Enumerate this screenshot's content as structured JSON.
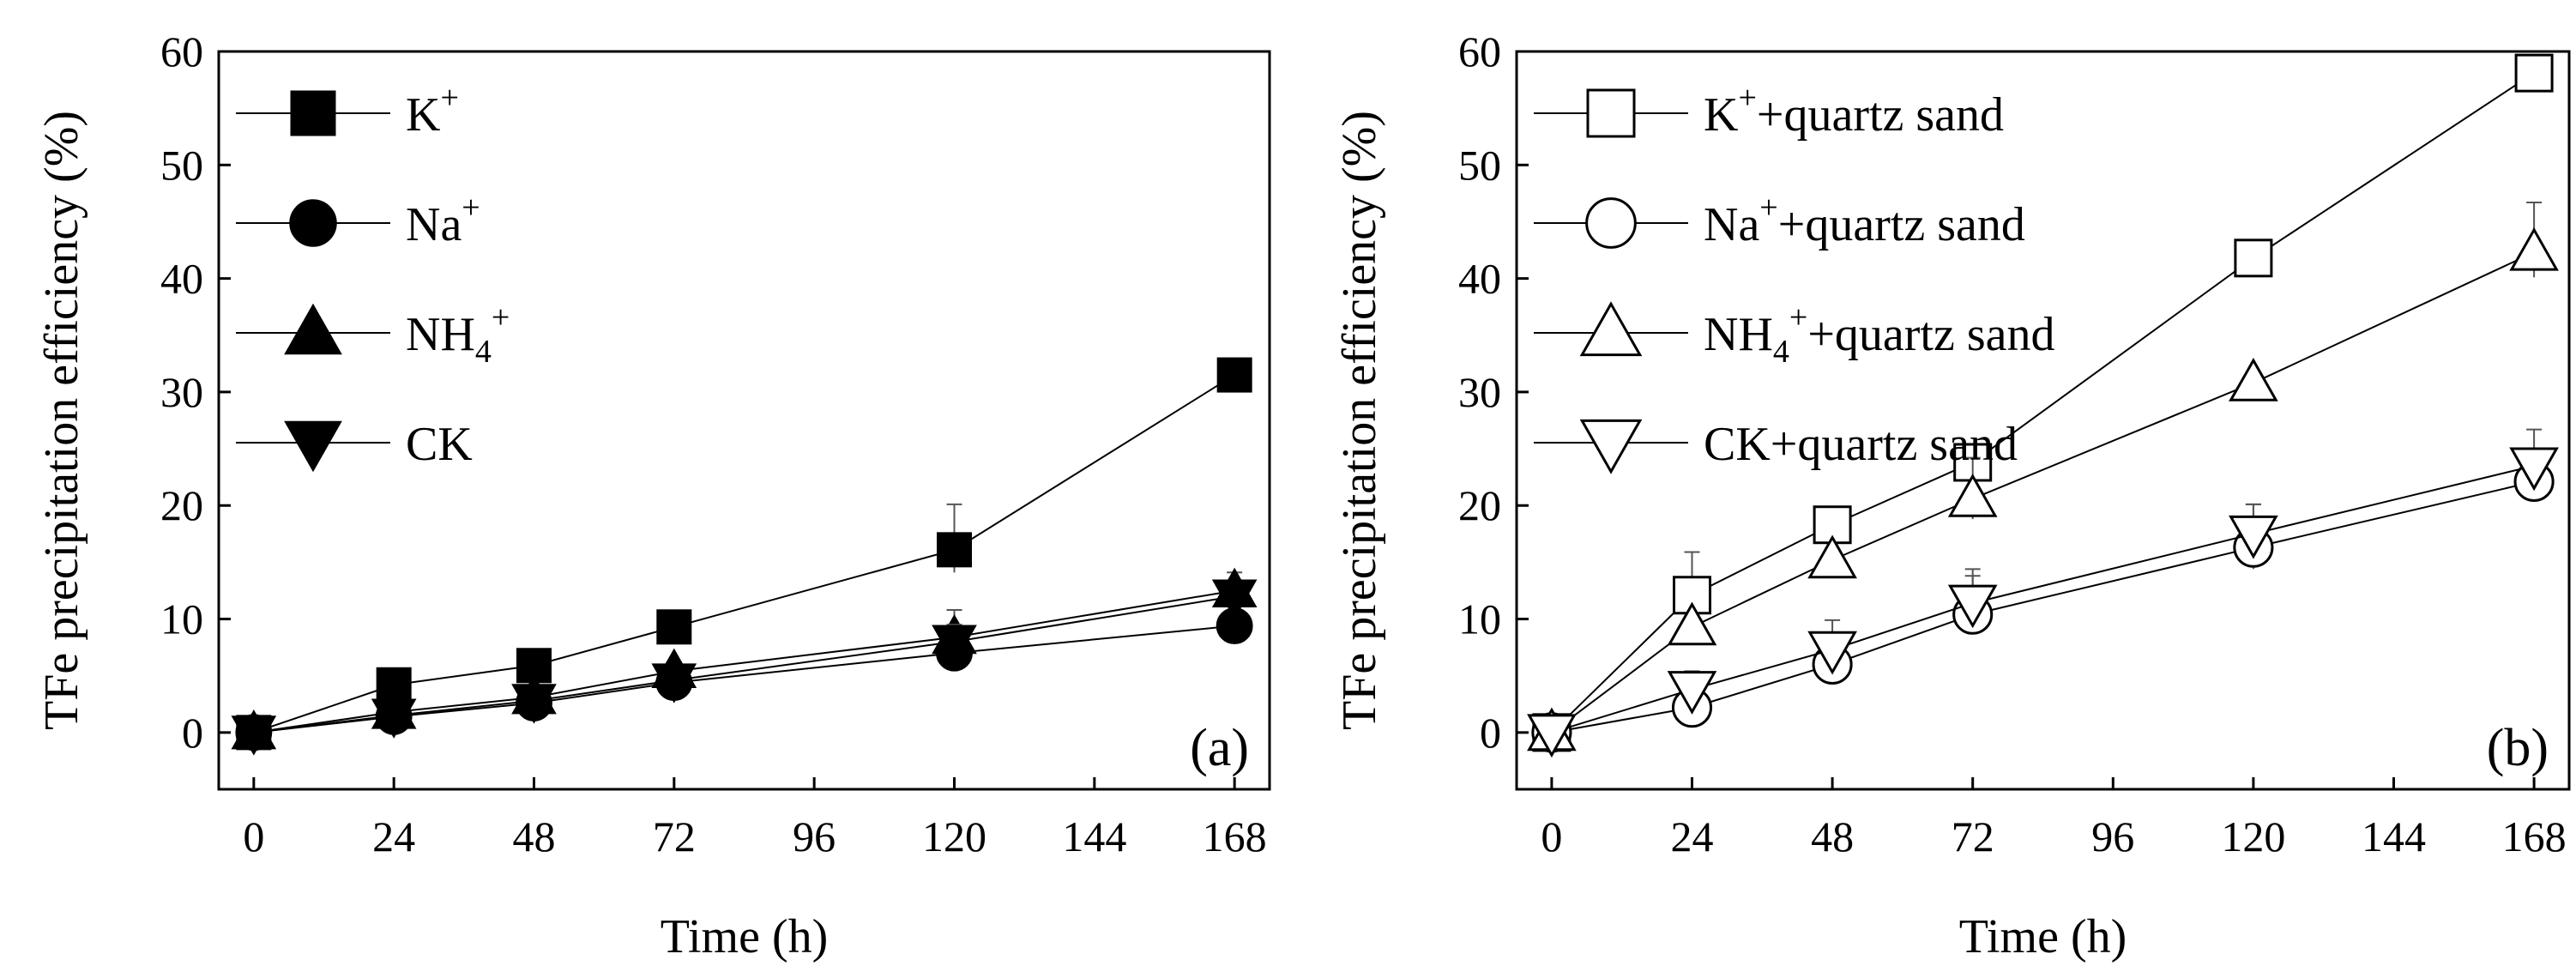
{
  "chart_data": [
    {
      "type": "line",
      "panel_label": "(a)",
      "title": "",
      "xlabel": "Time (h)",
      "ylabel": "TFe precipitation efficiency (%)",
      "xlim": [
        -6,
        174
      ],
      "ylim": [
        -5,
        60
      ],
      "xticks": [
        0,
        24,
        48,
        72,
        96,
        120,
        144,
        168
      ],
      "yticks": [
        0,
        10,
        20,
        30,
        40,
        50,
        60
      ],
      "legend_position": "top-left",
      "x": [
        0,
        24,
        48,
        72,
        120,
        168
      ],
      "series": [
        {
          "name": "K+",
          "legend_base": "K",
          "legend_sup": "+",
          "legend_sub": "",
          "legend_sup2": "",
          "legend_rest": "",
          "marker": "square",
          "filled": true,
          "values": [
            0,
            4.2,
            5.9,
            9.3,
            16.1,
            31.5
          ],
          "errors": [
            0,
            0.6,
            0.6,
            0.8,
            4.0,
            0.7
          ]
        },
        {
          "name": "Na+",
          "legend_base": "Na",
          "legend_sup": "+",
          "legend_sub": "",
          "legend_sup2": "",
          "legend_rest": "",
          "marker": "circle",
          "filled": true,
          "values": [
            0,
            1.4,
            2.6,
            4.4,
            7.0,
            9.4
          ],
          "errors": [
            0,
            0.4,
            0.6,
            0.8,
            1.8,
            0.8
          ]
        },
        {
          "name": "NH4+",
          "legend_base": "NH",
          "legend_sup": "",
          "legend_sub": "4",
          "legend_sup2": "+",
          "legend_rest": "",
          "marker": "triangle-up",
          "filled": true,
          "values": [
            0,
            1.8,
            3.1,
            5.4,
            8.4,
            12.5
          ],
          "errors": [
            0,
            0.4,
            0.6,
            0.8,
            2.4,
            1.6
          ]
        },
        {
          "name": "CK",
          "legend_base": "CK",
          "legend_sup": "",
          "legend_sub": "",
          "legend_sup2": "",
          "legend_rest": "",
          "marker": "triangle-down",
          "filled": true,
          "values": [
            0,
            1.5,
            2.8,
            4.6,
            8.0,
            12.0
          ],
          "errors": [
            0,
            0.4,
            0.5,
            0.7,
            1.5,
            1.2
          ]
        }
      ]
    },
    {
      "type": "line",
      "panel_label": "(b)",
      "title": "",
      "xlabel": "Time (h)",
      "ylabel": "TFe precipitation efficiency (%)",
      "xlim": [
        -6,
        174
      ],
      "ylim": [
        -5,
        60
      ],
      "xticks": [
        0,
        24,
        48,
        72,
        96,
        120,
        144,
        168
      ],
      "yticks": [
        0,
        10,
        20,
        30,
        40,
        50,
        60
      ],
      "legend_position": "top-left",
      "x": [
        0,
        24,
        48,
        72,
        120,
        168
      ],
      "series": [
        {
          "name": "K++quartz sand",
          "legend_base": "K",
          "legend_sup": "+",
          "legend_sub": "",
          "legend_sup2": "",
          "legend_rest": "+quartz sand",
          "marker": "square",
          "filled": false,
          "values": [
            0,
            12.1,
            18.3,
            23.8,
            41.8,
            58.1
          ],
          "errors": [
            0,
            3.8,
            0.8,
            0.8,
            0.6,
            0.8
          ]
        },
        {
          "name": "Na++quartz sand",
          "legend_base": "Na",
          "legend_sup": "+",
          "legend_sub": "",
          "legend_sup2": "",
          "legend_rest": "+quartz sand",
          "marker": "circle",
          "filled": false,
          "values": [
            0,
            2.2,
            6.0,
            10.4,
            16.3,
            22.1
          ],
          "errors": [
            0,
            0.6,
            1.2,
            3.4,
            3.8,
            1.8
          ]
        },
        {
          "name": "NH4++quartz sand",
          "legend_base": "NH",
          "legend_sup": "",
          "legend_sub": "4",
          "legend_sup2": "+",
          "legend_rest": "+quartz sand",
          "marker": "triangle-up",
          "filled": false,
          "values": [
            0,
            9.3,
            15.2,
            20.6,
            30.8,
            42.3
          ],
          "errors": [
            0,
            0.8,
            1.0,
            3.6,
            0.8,
            4.4
          ]
        },
        {
          "name": "CK+quartz sand",
          "legend_base": "CK",
          "legend_sup": "",
          "legend_sub": "",
          "legend_sup2": "",
          "legend_rest": "+quartz sand",
          "marker": "triangle-down",
          "filled": false,
          "values": [
            0,
            3.8,
            7.3,
            11.4,
            17.5,
            23.5
          ],
          "errors": [
            0,
            1.6,
            2.6,
            3.0,
            2.6,
            3.2
          ]
        }
      ]
    }
  ]
}
